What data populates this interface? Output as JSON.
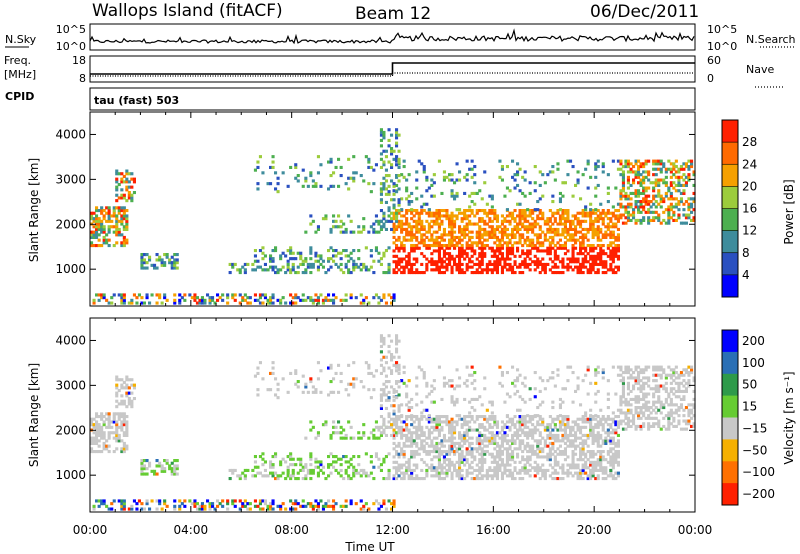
{
  "header": {
    "station": "Wallops Island (fitACF)",
    "beam": "Beam 12",
    "date": "06/Dec/2011"
  },
  "strip_panels": {
    "nsky_label": "N.Sky",
    "nsearch_label": "N.Search",
    "freq_label_1": "Freq.",
    "freq_label_2": "[MHz]",
    "nave_label": "Nave",
    "cpid_label": "CPID",
    "nsky_ticks": [
      "10^5",
      "10^0"
    ],
    "nsearch_ticks": [
      "10^5",
      "10^0"
    ],
    "freq_ticks": [
      "18",
      "8"
    ],
    "nave_ticks": [
      "60",
      "0"
    ],
    "cpid_text": "tau (fast) 503"
  },
  "chart_data": [
    {
      "type": "heatmap",
      "name": "power",
      "xlabel": "Time UT",
      "ylabel": "Slant Range [km]",
      "x_range_hours": [
        0,
        24
      ],
      "ylim": [
        180,
        4500
      ],
      "x_tick_labels": [
        "00:00",
        "04:00",
        "08:00",
        "12:00",
        "16:00",
        "20:00",
        "00:00"
      ],
      "y_tick_labels": [
        "1000",
        "2000",
        "3000",
        "4000"
      ],
      "y_ticks": [
        1000,
        2000,
        3000,
        4000
      ],
      "colorbar_label": "Power [dB]",
      "colorbar_ticks": [
        "4",
        "8",
        "12",
        "16",
        "20",
        "24",
        "28"
      ],
      "colorbar_range": [
        0,
        32
      ],
      "colors": [
        "#0000ff",
        "#2a50c0",
        "#3e8c9c",
        "#4caf50",
        "#9ccc3c",
        "#f5a000",
        "#ff6a00",
        "#ff2000"
      ]
    },
    {
      "type": "heatmap",
      "name": "velocity",
      "xlabel": "Time UT",
      "ylabel": "Slant Range [km]",
      "x_range_hours": [
        0,
        24
      ],
      "ylim": [
        180,
        4500
      ],
      "x_tick_labels": [
        "00:00",
        "04:00",
        "08:00",
        "12:00",
        "16:00",
        "20:00",
        "00:00"
      ],
      "y_tick_labels": [
        "1000",
        "2000",
        "3000",
        "4000"
      ],
      "y_ticks": [
        1000,
        2000,
        3000,
        4000
      ],
      "colorbar_label": "Velocity [m s⁻¹]",
      "colorbar_ticks": [
        "200",
        "100",
        "50",
        "15",
        "−15",
        "−50",
        "−100",
        "−200"
      ],
      "colors": [
        "#0000ff",
        "#2a6fb5",
        "#2e9a4a",
        "#66cc33",
        "#c8c8c8",
        "#f5b000",
        "#ff7000",
        "#ff2000"
      ]
    }
  ],
  "time_axis_title": "Time UT"
}
